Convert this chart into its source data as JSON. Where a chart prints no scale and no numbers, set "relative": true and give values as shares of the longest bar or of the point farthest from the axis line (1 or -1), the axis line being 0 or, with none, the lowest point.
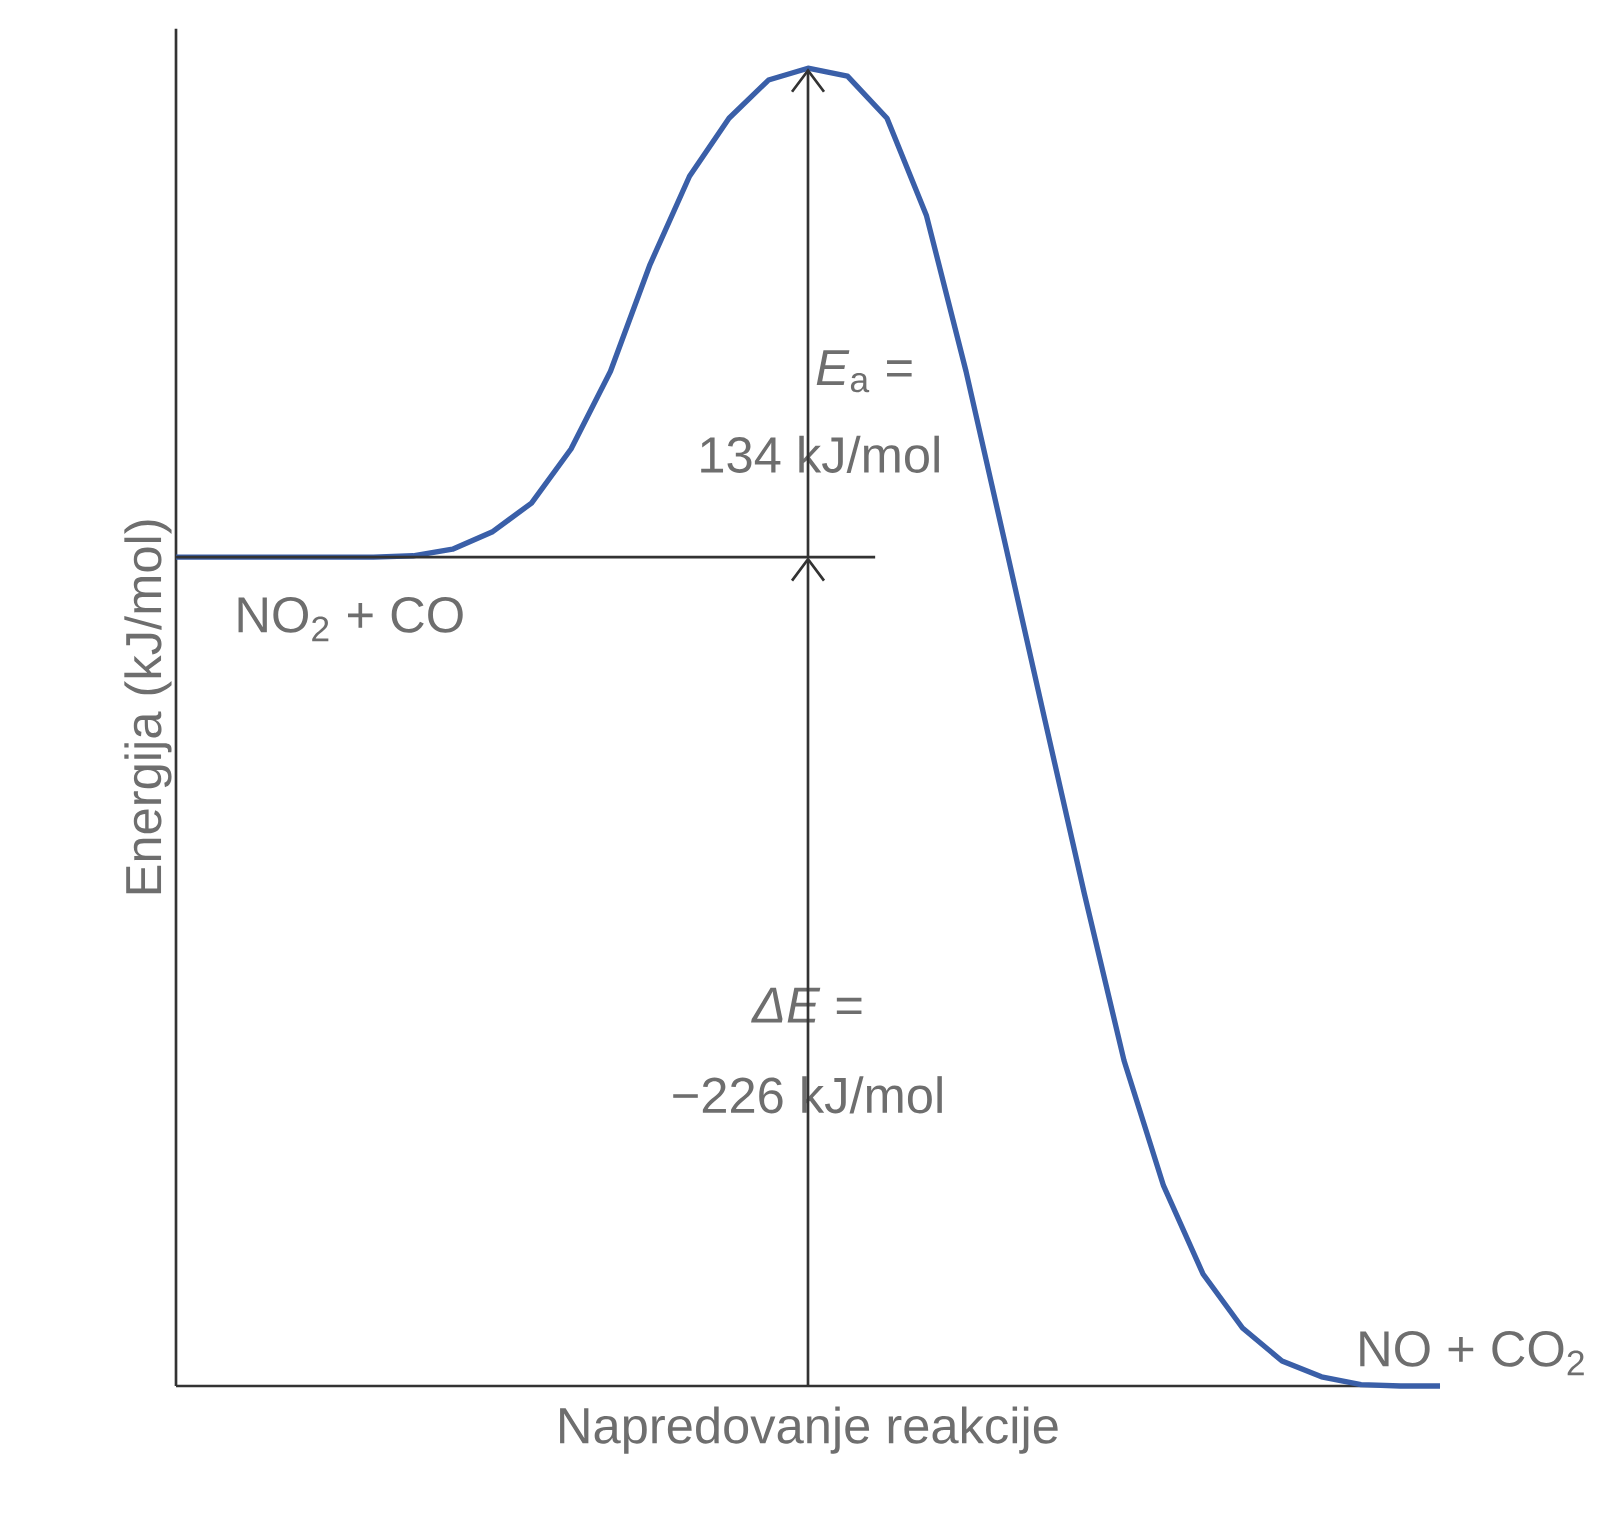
{
  "chart_data": {
    "type": "line",
    "relative": true,
    "xlabel": "Napredovanje reakcije",
    "ylabel": "Energija (kJ/mol)",
    "color": "#3a5fa8",
    "marker": "none",
    "line_style": "solid",
    "tick_labels": false,
    "categories": [
      null,
      null,
      null,
      null,
      null,
      null,
      null,
      null,
      null,
      null,
      null,
      null,
      null,
      null,
      null,
      null,
      null,
      null,
      null,
      null,
      null,
      null,
      null,
      null,
      null,
      null,
      null,
      null,
      null,
      null,
      null,
      null,
      null
    ],
    "values": [
      0.629,
      0.629,
      0.629,
      0.629,
      0.629,
      0.629,
      0.63,
      0.635,
      0.648,
      0.67,
      0.711,
      0.77,
      0.851,
      0.918,
      0.962,
      0.991,
      1.0,
      0.994,
      0.962,
      0.888,
      0.77,
      0.638,
      0.505,
      0.373,
      0.247,
      0.152,
      0.085,
      0.044,
      0.019,
      0.007,
      0.001,
      0,
      0
    ],
    "ref_lines": [
      {
        "axis": "y",
        "value": 0.629
      }
    ],
    "annotations": [
      "NO$_{2}$ + CO",
      "*E*$_{a}$ =",
      "134 kJ/mol",
      "*ΔE* =",
      "−226 kJ/mol",
      "NO + CO$_{2}$"
    ]
  }
}
